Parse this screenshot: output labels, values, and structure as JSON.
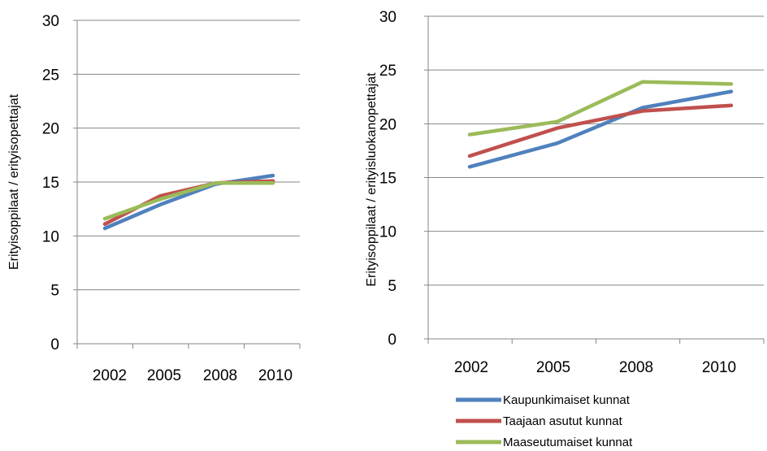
{
  "chart_data": [
    {
      "type": "line",
      "ylabel": "Erityisoppilaat / erityisopettajat",
      "categories": [
        "2002",
        "2005",
        "2008",
        "2010"
      ],
      "ylim": [
        0,
        30
      ],
      "yticks": [
        0,
        5,
        10,
        15,
        20,
        25,
        30
      ],
      "grid": true,
      "series": [
        {
          "name": "Kaupunkimaiset kunnat",
          "color": "#4f81bd",
          "values": [
            10.7,
            12.9,
            14.8,
            15.6
          ]
        },
        {
          "name": "Taajaan asutut kunnat",
          "color": "#c0504d",
          "values": [
            11.1,
            13.7,
            14.9,
            15.1
          ]
        },
        {
          "name": "Maaseutumaiset kunnat",
          "color": "#9bbb59",
          "values": [
            11.6,
            13.4,
            14.9,
            14.9
          ]
        }
      ]
    },
    {
      "type": "line",
      "ylabel": "Erityisoppilaat / erityisluokanopettajat",
      "categories": [
        "2002",
        "2005",
        "2008",
        "2010"
      ],
      "ylim": [
        0,
        30
      ],
      "yticks": [
        0,
        5,
        10,
        15,
        20,
        25,
        30
      ],
      "grid": true,
      "legend": "bottom",
      "series": [
        {
          "name": "Kaupunkimaiset kunnat",
          "color": "#4f81bd",
          "values": [
            16.0,
            18.2,
            21.5,
            23.0
          ]
        },
        {
          "name": "Taajaan asutut kunnat",
          "color": "#c0504d",
          "values": [
            17.0,
            19.6,
            21.2,
            21.7
          ]
        },
        {
          "name": "Maaseutumaiset kunnat",
          "color": "#9bbb59",
          "values": [
            19.0,
            20.2,
            23.9,
            23.7
          ]
        }
      ]
    }
  ]
}
